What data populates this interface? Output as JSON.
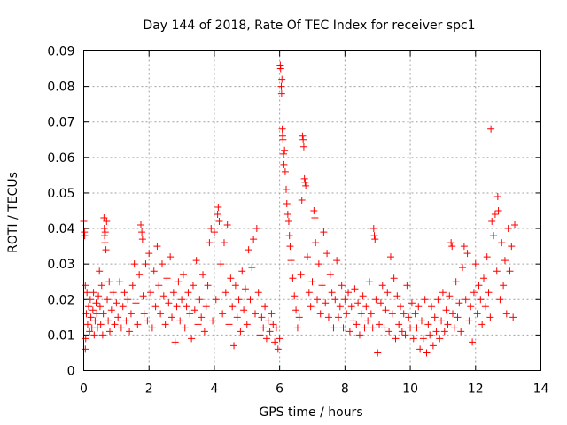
{
  "chart_data": {
    "type": "scatter",
    "title": "Day 144 of 2018, Rate Of TEC Index for receiver spc1",
    "xlabel": "GPS time / hours",
    "ylabel": "ROTI / TECUs",
    "xlim": [
      0,
      14
    ],
    "ylim": [
      0,
      0.09
    ],
    "xticks": [
      0,
      2,
      4,
      6,
      8,
      10,
      12,
      14
    ],
    "xtick_labels": [
      "0",
      "2",
      "4",
      "6",
      "8",
      "10",
      "12",
      "14"
    ],
    "yticks": [
      0,
      0.01,
      0.02,
      0.03,
      0.04,
      0.05,
      0.06,
      0.07,
      0.08,
      0.09
    ],
    "ytick_labels": [
      "0",
      "0.01",
      "0.02",
      "0.03",
      "0.04",
      "0.05",
      "0.06",
      "0.07",
      "0.08",
      "0.09"
    ],
    "grid": true,
    "marker": "+",
    "color": "#ff0000",
    "series": [
      {
        "name": "ROTI",
        "points": [
          [
            0.0,
            0.042
          ],
          [
            0.02,
            0.039
          ],
          [
            0.03,
            0.038
          ],
          [
            0.05,
            0.024
          ],
          [
            0.05,
            0.006
          ],
          [
            0.06,
            0.009
          ],
          [
            0.08,
            0.016
          ],
          [
            0.1,
            0.022
          ],
          [
            0.12,
            0.013
          ],
          [
            0.15,
            0.018
          ],
          [
            0.18,
            0.011
          ],
          [
            0.2,
            0.02
          ],
          [
            0.22,
            0.015
          ],
          [
            0.25,
            0.012
          ],
          [
            0.28,
            0.017
          ],
          [
            0.3,
            0.022
          ],
          [
            0.32,
            0.01
          ],
          [
            0.35,
            0.014
          ],
          [
            0.38,
            0.019
          ],
          [
            0.4,
            0.016
          ],
          [
            0.42,
            0.012
          ],
          [
            0.45,
            0.021
          ],
          [
            0.48,
            0.028
          ],
          [
            0.5,
            0.018
          ],
          [
            0.52,
            0.013
          ],
          [
            0.55,
            0.024
          ],
          [
            0.58,
            0.01
          ],
          [
            0.6,
            0.016
          ],
          [
            0.62,
            0.043
          ],
          [
            0.63,
            0.04
          ],
          [
            0.64,
            0.038
          ],
          [
            0.65,
            0.036
          ],
          [
            0.66,
            0.039
          ],
          [
            0.68,
            0.034
          ],
          [
            0.7,
            0.042
          ],
          [
            0.72,
            0.02
          ],
          [
            0.75,
            0.014
          ],
          [
            0.78,
            0.025
          ],
          [
            0.8,
            0.011
          ],
          [
            0.85,
            0.017
          ],
          [
            0.9,
            0.022
          ],
          [
            0.95,
            0.013
          ],
          [
            1.0,
            0.019
          ],
          [
            1.05,
            0.015
          ],
          [
            1.1,
            0.025
          ],
          [
            1.15,
            0.012
          ],
          [
            1.2,
            0.018
          ],
          [
            1.25,
            0.022
          ],
          [
            1.3,
            0.014
          ],
          [
            1.35,
            0.02
          ],
          [
            1.4,
            0.011
          ],
          [
            1.45,
            0.016
          ],
          [
            1.5,
            0.024
          ],
          [
            1.55,
            0.03
          ],
          [
            1.6,
            0.019
          ],
          [
            1.65,
            0.013
          ],
          [
            1.7,
            0.027
          ],
          [
            1.75,
            0.041
          ],
          [
            1.78,
            0.039
          ],
          [
            1.8,
            0.037
          ],
          [
            1.82,
            0.021
          ],
          [
            1.85,
            0.016
          ],
          [
            1.9,
            0.03
          ],
          [
            1.95,
            0.014
          ],
          [
            2.0,
            0.033
          ],
          [
            2.05,
            0.022
          ],
          [
            2.1,
            0.012
          ],
          [
            2.15,
            0.028
          ],
          [
            2.2,
            0.018
          ],
          [
            2.25,
            0.035
          ],
          [
            2.3,
            0.024
          ],
          [
            2.35,
            0.016
          ],
          [
            2.4,
            0.03
          ],
          [
            2.45,
            0.021
          ],
          [
            2.5,
            0.013
          ],
          [
            2.55,
            0.026
          ],
          [
            2.6,
            0.019
          ],
          [
            2.65,
            0.032
          ],
          [
            2.7,
            0.015
          ],
          [
            2.75,
            0.022
          ],
          [
            2.8,
            0.008
          ],
          [
            2.85,
            0.018
          ],
          [
            2.9,
            0.025
          ],
          [
            2.95,
            0.014
          ],
          [
            3.0,
            0.02
          ],
          [
            3.05,
            0.027
          ],
          [
            3.1,
            0.012
          ],
          [
            3.15,
            0.018
          ],
          [
            3.2,
            0.022
          ],
          [
            3.25,
            0.016
          ],
          [
            3.3,
            0.009
          ],
          [
            3.35,
            0.024
          ],
          [
            3.4,
            0.017
          ],
          [
            3.45,
            0.031
          ],
          [
            3.5,
            0.013
          ],
          [
            3.55,
            0.02
          ],
          [
            3.6,
            0.015
          ],
          [
            3.65,
            0.027
          ],
          [
            3.7,
            0.011
          ],
          [
            3.75,
            0.018
          ],
          [
            3.8,
            0.024
          ],
          [
            3.85,
            0.036
          ],
          [
            3.9,
            0.04
          ],
          [
            3.95,
            0.014
          ],
          [
            4.0,
            0.039
          ],
          [
            4.05,
            0.02
          ],
          [
            4.1,
            0.044
          ],
          [
            4.12,
            0.046
          ],
          [
            4.15,
            0.042
          ],
          [
            4.2,
            0.03
          ],
          [
            4.25,
            0.016
          ],
          [
            4.3,
            0.036
          ],
          [
            4.35,
            0.022
          ],
          [
            4.4,
            0.041
          ],
          [
            4.45,
            0.013
          ],
          [
            4.5,
            0.026
          ],
          [
            4.55,
            0.018
          ],
          [
            4.6,
            0.007
          ],
          [
            4.65,
            0.024
          ],
          [
            4.7,
            0.015
          ],
          [
            4.75,
            0.02
          ],
          [
            4.8,
            0.011
          ],
          [
            4.85,
            0.028
          ],
          [
            4.9,
            0.017
          ],
          [
            4.95,
            0.023
          ],
          [
            5.0,
            0.013
          ],
          [
            5.05,
            0.034
          ],
          [
            5.1,
            0.02
          ],
          [
            5.15,
            0.029
          ],
          [
            5.2,
            0.037
          ],
          [
            5.25,
            0.016
          ],
          [
            5.3,
            0.04
          ],
          [
            5.35,
            0.022
          ],
          [
            5.4,
            0.01
          ],
          [
            5.45,
            0.015
          ],
          [
            5.5,
            0.012
          ],
          [
            5.55,
            0.018
          ],
          [
            5.6,
            0.009
          ],
          [
            5.65,
            0.014
          ],
          [
            5.7,
            0.011
          ],
          [
            5.75,
            0.016
          ],
          [
            5.8,
            0.013
          ],
          [
            5.85,
            0.008
          ],
          [
            5.9,
            0.012
          ],
          [
            5.95,
            0.006
          ],
          [
            6.0,
            0.009
          ],
          [
            6.02,
            0.086
          ],
          [
            6.03,
            0.085
          ],
          [
            6.05,
            0.08
          ],
          [
            6.06,
            0.078
          ],
          [
            6.07,
            0.082
          ],
          [
            6.08,
            0.068
          ],
          [
            6.09,
            0.066
          ],
          [
            6.1,
            0.065
          ],
          [
            6.12,
            0.061
          ],
          [
            6.13,
            0.058
          ],
          [
            6.15,
            0.062
          ],
          [
            6.17,
            0.056
          ],
          [
            6.2,
            0.051
          ],
          [
            6.22,
            0.047
          ],
          [
            6.25,
            0.044
          ],
          [
            6.28,
            0.042
          ],
          [
            6.3,
            0.038
          ],
          [
            6.32,
            0.035
          ],
          [
            6.35,
            0.031
          ],
          [
            6.4,
            0.026
          ],
          [
            6.45,
            0.021
          ],
          [
            6.5,
            0.017
          ],
          [
            6.55,
            0.012
          ],
          [
            6.6,
            0.015
          ],
          [
            6.65,
            0.027
          ],
          [
            6.68,
            0.048
          ],
          [
            6.7,
            0.066
          ],
          [
            6.72,
            0.065
          ],
          [
            6.74,
            0.063
          ],
          [
            6.76,
            0.054
          ],
          [
            6.78,
            0.053
          ],
          [
            6.8,
            0.052
          ],
          [
            6.85,
            0.032
          ],
          [
            6.9,
            0.022
          ],
          [
            6.95,
            0.018
          ],
          [
            7.0,
            0.025
          ],
          [
            7.05,
            0.045
          ],
          [
            7.08,
            0.043
          ],
          [
            7.1,
            0.036
          ],
          [
            7.15,
            0.02
          ],
          [
            7.2,
            0.03
          ],
          [
            7.25,
            0.016
          ],
          [
            7.3,
            0.024
          ],
          [
            7.35,
            0.039
          ],
          [
            7.4,
            0.019
          ],
          [
            7.45,
            0.033
          ],
          [
            7.5,
            0.015
          ],
          [
            7.55,
            0.027
          ],
          [
            7.6,
            0.022
          ],
          [
            7.65,
            0.012
          ],
          [
            7.7,
            0.02
          ],
          [
            7.75,
            0.031
          ],
          [
            7.8,
            0.015
          ],
          [
            7.85,
            0.018
          ],
          [
            7.9,
            0.024
          ],
          [
            7.95,
            0.012
          ],
          [
            8.0,
            0.02
          ],
          [
            8.05,
            0.016
          ],
          [
            8.1,
            0.022
          ],
          [
            8.15,
            0.011
          ],
          [
            8.2,
            0.018
          ],
          [
            8.25,
            0.014
          ],
          [
            8.3,
            0.023
          ],
          [
            8.35,
            0.013
          ],
          [
            8.4,
            0.019
          ],
          [
            8.45,
            0.01
          ],
          [
            8.5,
            0.016
          ],
          [
            8.55,
            0.021
          ],
          [
            8.6,
            0.012
          ],
          [
            8.65,
            0.018
          ],
          [
            8.7,
            0.014
          ],
          [
            8.75,
            0.025
          ],
          [
            8.8,
            0.016
          ],
          [
            8.85,
            0.012
          ],
          [
            8.88,
            0.04
          ],
          [
            8.9,
            0.038
          ],
          [
            8.92,
            0.037
          ],
          [
            8.95,
            0.02
          ],
          [
            9.0,
            0.005
          ],
          [
            9.05,
            0.013
          ],
          [
            9.1,
            0.019
          ],
          [
            9.15,
            0.024
          ],
          [
            9.2,
            0.012
          ],
          [
            9.25,
            0.017
          ],
          [
            9.3,
            0.022
          ],
          [
            9.35,
            0.011
          ],
          [
            9.4,
            0.032
          ],
          [
            9.45,
            0.016
          ],
          [
            9.5,
            0.026
          ],
          [
            9.55,
            0.009
          ],
          [
            9.6,
            0.021
          ],
          [
            9.65,
            0.013
          ],
          [
            9.7,
            0.018
          ],
          [
            9.75,
            0.011
          ],
          [
            9.8,
            0.016
          ],
          [
            9.85,
            0.01
          ],
          [
            9.9,
            0.024
          ],
          [
            9.95,
            0.015
          ],
          [
            10.0,
            0.012
          ],
          [
            10.05,
            0.019
          ],
          [
            10.1,
            0.009
          ],
          [
            10.15,
            0.016
          ],
          [
            10.2,
            0.012
          ],
          [
            10.25,
            0.018
          ],
          [
            10.3,
            0.006
          ],
          [
            10.35,
            0.014
          ],
          [
            10.4,
            0.009
          ],
          [
            10.45,
            0.02
          ],
          [
            10.5,
            0.005
          ],
          [
            10.55,
            0.013
          ],
          [
            10.6,
            0.01
          ],
          [
            10.65,
            0.018
          ],
          [
            10.7,
            0.007
          ],
          [
            10.75,
            0.015
          ],
          [
            10.8,
            0.011
          ],
          [
            10.85,
            0.02
          ],
          [
            10.9,
            0.009
          ],
          [
            10.95,
            0.014
          ],
          [
            11.0,
            0.022
          ],
          [
            11.05,
            0.011
          ],
          [
            11.1,
            0.017
          ],
          [
            11.15,
            0.013
          ],
          [
            11.2,
            0.021
          ],
          [
            11.25,
            0.036
          ],
          [
            11.28,
            0.035
          ],
          [
            11.3,
            0.016
          ],
          [
            11.35,
            0.012
          ],
          [
            11.4,
            0.025
          ],
          [
            11.45,
            0.015
          ],
          [
            11.5,
            0.019
          ],
          [
            11.55,
            0.011
          ],
          [
            11.6,
            0.029
          ],
          [
            11.65,
            0.035
          ],
          [
            11.7,
            0.02
          ],
          [
            11.75,
            0.033
          ],
          [
            11.8,
            0.014
          ],
          [
            11.85,
            0.018
          ],
          [
            11.9,
            0.008
          ],
          [
            11.95,
            0.022
          ],
          [
            12.0,
            0.03
          ],
          [
            12.05,
            0.016
          ],
          [
            12.1,
            0.024
          ],
          [
            12.15,
            0.02
          ],
          [
            12.2,
            0.013
          ],
          [
            12.25,
            0.026
          ],
          [
            12.3,
            0.018
          ],
          [
            12.35,
            0.032
          ],
          [
            12.4,
            0.022
          ],
          [
            12.45,
            0.015
          ],
          [
            12.47,
            0.068
          ],
          [
            12.5,
            0.042
          ],
          [
            12.55,
            0.038
          ],
          [
            12.6,
            0.044
          ],
          [
            12.65,
            0.028
          ],
          [
            12.68,
            0.049
          ],
          [
            12.7,
            0.045
          ],
          [
            12.75,
            0.02
          ],
          [
            12.8,
            0.036
          ],
          [
            12.85,
            0.024
          ],
          [
            12.9,
            0.031
          ],
          [
            12.95,
            0.016
          ],
          [
            13.0,
            0.04
          ],
          [
            13.05,
            0.028
          ],
          [
            13.1,
            0.035
          ],
          [
            13.15,
            0.015
          ],
          [
            13.2,
            0.041
          ]
        ]
      }
    ]
  }
}
